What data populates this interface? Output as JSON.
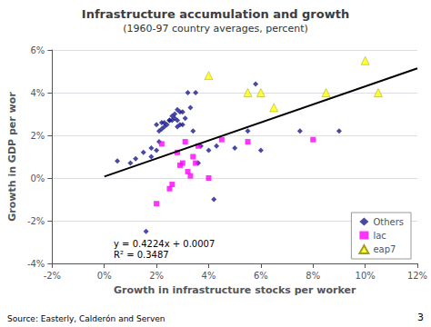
{
  "chart_data": {
    "type": "scatter",
    "title": "Infrastructure accumulation and growth",
    "subtitle": "(1960-97 country averages, percent)",
    "xlabel": "Growth in infrastructure stocks per worker",
    "ylabel": "Growth in GDP per wor",
    "annotations": [
      "y = 0.4224x + 0.0007",
      "R² = 0.3487"
    ],
    "source": "Source: Easterly, Calderón and Serven",
    "page_number": "3",
    "xlim": [
      -0.02,
      0.12
    ],
    "ylim": [
      -0.04,
      0.06
    ],
    "xticks": [
      {
        "value": -0.02,
        "label": "-2%"
      },
      {
        "value": 0.0,
        "label": "0%"
      },
      {
        "value": 0.02,
        "label": "2%"
      },
      {
        "value": 0.04,
        "label": "4%"
      },
      {
        "value": 0.06,
        "label": "6%"
      },
      {
        "value": 0.08,
        "label": "8%"
      },
      {
        "value": 0.1,
        "label": "10%"
      },
      {
        "value": 0.12,
        "label": "12%"
      }
    ],
    "yticks": [
      {
        "value": -0.04,
        "label": "-4%"
      },
      {
        "value": -0.02,
        "label": "-2%"
      },
      {
        "value": 0.0,
        "label": "0%"
      },
      {
        "value": 0.02,
        "label": "2%"
      },
      {
        "value": 0.04,
        "label": "4%"
      },
      {
        "value": 0.06,
        "label": "6%"
      }
    ],
    "grid": "y",
    "legend": "lower right",
    "series": [
      {
        "name": "Others",
        "type": "scatter",
        "marker": "diamond",
        "color": "#1C1C8C",
        "x": [
          0.005,
          0.01,
          0.012,
          0.015,
          0.016,
          0.018,
          0.018,
          0.02,
          0.02,
          0.021,
          0.021,
          0.022,
          0.022,
          0.023,
          0.023,
          0.024,
          0.025,
          0.025,
          0.026,
          0.026,
          0.027,
          0.027,
          0.028,
          0.028,
          0.028,
          0.029,
          0.029,
          0.03,
          0.03,
          0.031,
          0.032,
          0.033,
          0.034,
          0.035,
          0.036,
          0.037,
          0.04,
          0.042,
          0.043,
          0.05,
          0.055,
          0.058,
          0.06,
          0.075,
          0.09
        ],
        "values": [
          0.008,
          0.007,
          0.009,
          0.012,
          -0.025,
          0.01,
          0.014,
          0.025,
          0.013,
          0.017,
          0.022,
          0.023,
          0.026,
          0.024,
          0.026,
          0.025,
          0.027,
          0.027,
          0.027,
          0.029,
          0.028,
          0.03,
          0.024,
          0.027,
          0.032,
          0.025,
          0.031,
          0.025,
          0.031,
          0.028,
          0.04,
          0.033,
          0.022,
          0.04,
          0.007,
          0.015,
          0.013,
          -0.01,
          0.015,
          0.014,
          0.022,
          0.044,
          0.013,
          0.022,
          0.022
        ]
      },
      {
        "name": "lac",
        "type": "scatter",
        "marker": "square",
        "color": "#FF00FF",
        "x": [
          0.02,
          0.022,
          0.025,
          0.026,
          0.028,
          0.029,
          0.03,
          0.031,
          0.032,
          0.033,
          0.034,
          0.035,
          0.036,
          0.04,
          0.045,
          0.055,
          0.08
        ],
        "values": [
          -0.012,
          0.016,
          -0.005,
          -0.003,
          0.012,
          0.006,
          0.007,
          0.017,
          0.003,
          0.001,
          0.01,
          0.007,
          0.015,
          0.0,
          0.018,
          0.017,
          0.018
        ]
      },
      {
        "name": "eap7",
        "type": "scatter",
        "marker": "triangle",
        "color": "#FFFF00",
        "x": [
          0.04,
          0.055,
          0.06,
          0.065,
          0.085,
          0.1,
          0.105
        ],
        "values": [
          0.048,
          0.04,
          0.04,
          0.033,
          0.04,
          0.055,
          0.04
        ]
      },
      {
        "type": "line",
        "line_style": "solid",
        "color": "#000000",
        "x": [
          0.0,
          0.12
        ],
        "values": [
          0.0007,
          0.051388
        ]
      }
    ]
  }
}
